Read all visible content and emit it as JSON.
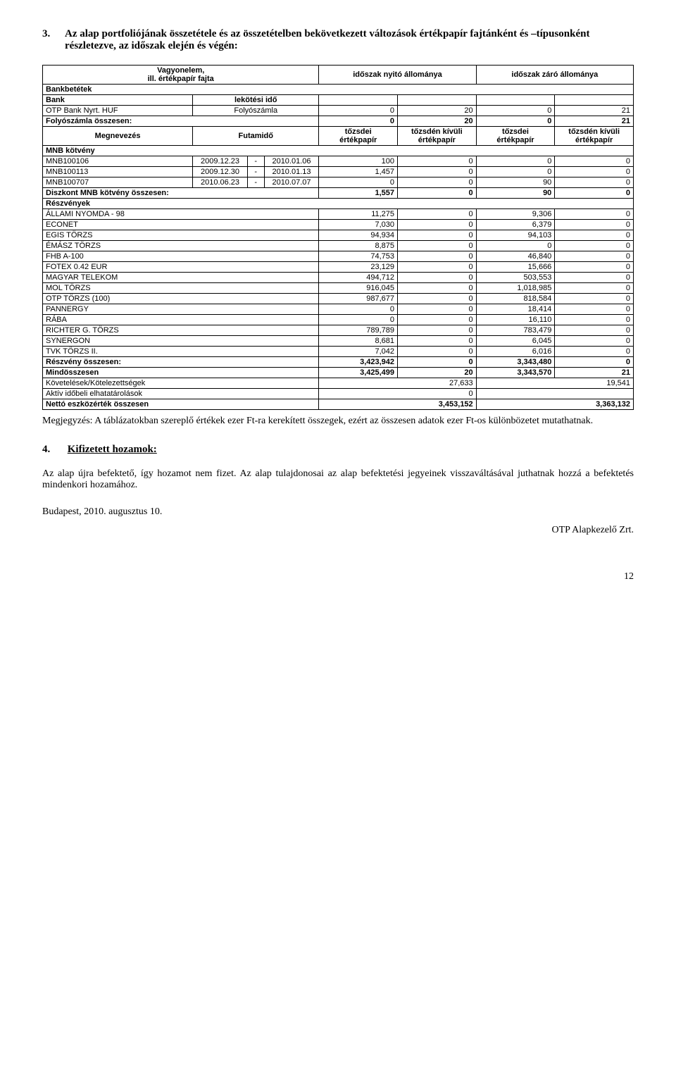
{
  "section3": {
    "number": "3.",
    "title": "Az alap portfoliójának összetétele és az összetételben bekövetkezett változások értékpapír fajtánként és –típusonként részletezve, az időszak elején és végén:"
  },
  "table": {
    "header": {
      "vagyon": "Vagyonelem,\nill. értékpapír fajta",
      "nyito": "időszak nyitó állománya",
      "zaro": "időszak záró állománya"
    },
    "bankbetetek": "Bankbetétek",
    "bank": "Bank",
    "lekotesi": "lekötési idő",
    "otp": "OTP Bank Nyrt. HUF",
    "folyoszamla": "Folyószámla",
    "otp_vals": [
      "0",
      "20",
      "0",
      "21"
    ],
    "folyo_ossz": "Folyószámla összesen:",
    "folyo_vals": [
      "0",
      "20",
      "0",
      "21"
    ],
    "megnevezes": "Megnevezés",
    "futamido": "Futamidő",
    "subheads": [
      "tőzsdei\nértékpapír",
      "tőzsdén kívüli\nértékpapír",
      "tőzsdei\nértékpapír",
      "tőzsdén kívüli\nértékpapír"
    ],
    "mnb_kotveny": "MNB kötvény",
    "mnb_rows": [
      {
        "name": "MNB100106",
        "d1": "2009.12.23",
        "dash": "-",
        "d2": "2010.01.06",
        "v": [
          "100",
          "0",
          "0",
          "0"
        ]
      },
      {
        "name": "MNB100113",
        "d1": "2009.12.30",
        "dash": "-",
        "d2": "2010.01.13",
        "v": [
          "1,457",
          "0",
          "0",
          "0"
        ]
      },
      {
        "name": "MNB100707",
        "d1": "2010.06.23",
        "dash": "-",
        "d2": "2010.07.07",
        "v": [
          "0",
          "0",
          "90",
          "0"
        ]
      }
    ],
    "diszkont": "Diszkont MNB kötvény összesen:",
    "diszkont_vals": [
      "1,557",
      "0",
      "90",
      "0"
    ],
    "reszvenyek": "Részvények",
    "stock_rows": [
      {
        "name": "ÁLLAMI NYOMDA - 98",
        "v": [
          "11,275",
          "0",
          "9,306",
          "0"
        ]
      },
      {
        "name": "ECONET",
        "v": [
          "7,030",
          "0",
          "6,379",
          "0"
        ]
      },
      {
        "name": "EGIS TÖRZS",
        "v": [
          "94,934",
          "0",
          "94,103",
          "0"
        ]
      },
      {
        "name": "ÉMÁSZ TÖRZS",
        "v": [
          "8,875",
          "0",
          "0",
          "0"
        ]
      },
      {
        "name": "FHB A-100",
        "v": [
          "74,753",
          "0",
          "46,840",
          "0"
        ]
      },
      {
        "name": "FOTEX 0.42 EUR",
        "v": [
          "23,129",
          "0",
          "15,666",
          "0"
        ]
      },
      {
        "name": "MAGYAR TELEKOM",
        "v": [
          "494,712",
          "0",
          "503,553",
          "0"
        ]
      },
      {
        "name": "MOL TÖRZS",
        "v": [
          "916,045",
          "0",
          "1,018,985",
          "0"
        ]
      },
      {
        "name": "OTP TÖRZS (100)",
        "v": [
          "987,677",
          "0",
          "818,584",
          "0"
        ]
      },
      {
        "name": "PANNERGY",
        "v": [
          "0",
          "0",
          "18,414",
          "0"
        ]
      },
      {
        "name": "RÁBA",
        "v": [
          "0",
          "0",
          "16,110",
          "0"
        ]
      },
      {
        "name": "RICHTER G. TÖRZS",
        "v": [
          "789,789",
          "0",
          "783,479",
          "0"
        ]
      },
      {
        "name": "SYNERGON",
        "v": [
          "8,681",
          "0",
          "6,045",
          "0"
        ]
      },
      {
        "name": "TVK TÖRZS II.",
        "v": [
          "7,042",
          "0",
          "6,016",
          "0"
        ]
      }
    ],
    "reszveny_ossz": "Részvény összesen:",
    "reszveny_vals": [
      "3,423,942",
      "0",
      "3,343,480",
      "0"
    ],
    "mindossz": "Mindösszesen",
    "mindossz_vals": [
      "3,425,499",
      "20",
      "3,343,570",
      "21"
    ],
    "kovetel": "Követelések/Kötelezettségek",
    "kovetel_vals": [
      "27,633",
      "19,541"
    ],
    "aktiv": "Aktív időbeli elhatatárolások",
    "aktiv_val": "0",
    "netto": "Nettó eszközérték összesen",
    "netto_vals": [
      "3,453,152",
      "3,363,132"
    ]
  },
  "note": "Megjegyzés: A táblázatokban szereplő értékek ezer Ft-ra kerekített összegek, ezért az összesen adatok ezer Ft-os különbözetet mutathatnak.",
  "section4": {
    "number": "4.",
    "title": "Kifizetett hozamok:",
    "body": "Az alap újra befektető, így hozamot nem fizet. Az alap tulajdonosai az alap befektetési jegyeinek visszaváltásával juthatnak hozzá a befektetés mindenkori hozamához."
  },
  "date": "Budapest, 2010. augusztus 10.",
  "signature": "OTP Alapkezelő Zrt.",
  "pagenum": "12"
}
